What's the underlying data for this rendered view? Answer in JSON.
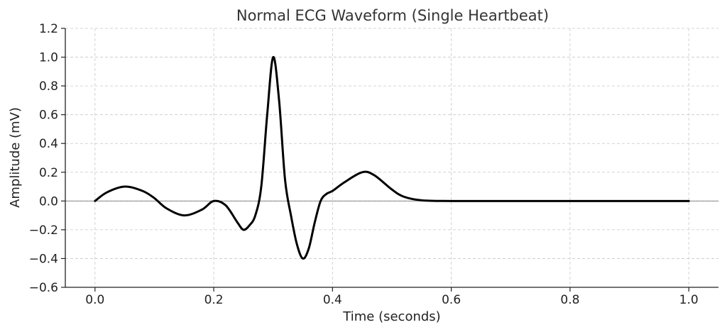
{
  "chart_data": {
    "type": "line",
    "title": "Normal ECG Waveform (Single Heartbeat)",
    "xlabel": "Time (seconds)",
    "ylabel": "Amplitude (mV)",
    "xlim": [
      -0.05,
      1.05
    ],
    "ylim": [
      -0.6,
      1.2
    ],
    "xticks": [
      0.0,
      0.2,
      0.4,
      0.6,
      0.8,
      1.0
    ],
    "xtick_labels": [
      "0.0",
      "0.2",
      "0.4",
      "0.6",
      "0.8",
      "1.0"
    ],
    "yticks": [
      -0.6,
      -0.4,
      -0.2,
      0.0,
      0.2,
      0.4,
      0.6,
      0.8,
      1.0,
      1.2
    ],
    "ytick_labels": [
      "−0.6",
      "−0.4",
      "−0.2",
      "0.0",
      "0.2",
      "0.4",
      "0.6",
      "0.8",
      "1.0",
      "1.2"
    ],
    "grid": true,
    "zero_line": true,
    "line_color": "#000000",
    "series": [
      {
        "x": [
          0.0,
          0.02,
          0.05,
          0.08,
          0.1,
          0.12,
          0.15,
          0.18,
          0.2,
          0.22,
          0.24,
          0.25,
          0.26,
          0.27,
          0.28,
          0.29,
          0.3,
          0.31,
          0.32,
          0.33,
          0.34,
          0.35,
          0.36,
          0.37,
          0.38,
          0.39,
          0.4,
          0.42,
          0.45,
          0.47,
          0.5,
          0.52,
          0.55,
          0.6,
          0.7,
          0.8,
          0.9,
          1.0
        ],
        "y": [
          0.0,
          0.06,
          0.1,
          0.07,
          0.02,
          -0.05,
          -0.1,
          -0.06,
          0.0,
          -0.03,
          -0.15,
          -0.2,
          -0.17,
          -0.1,
          0.1,
          0.6,
          1.0,
          0.7,
          0.15,
          -0.1,
          -0.3,
          -0.4,
          -0.33,
          -0.15,
          0.0,
          0.05,
          0.07,
          0.13,
          0.2,
          0.18,
          0.08,
          0.03,
          0.005,
          0.0,
          0.0,
          0.0,
          0.0,
          0.0
        ]
      }
    ]
  }
}
